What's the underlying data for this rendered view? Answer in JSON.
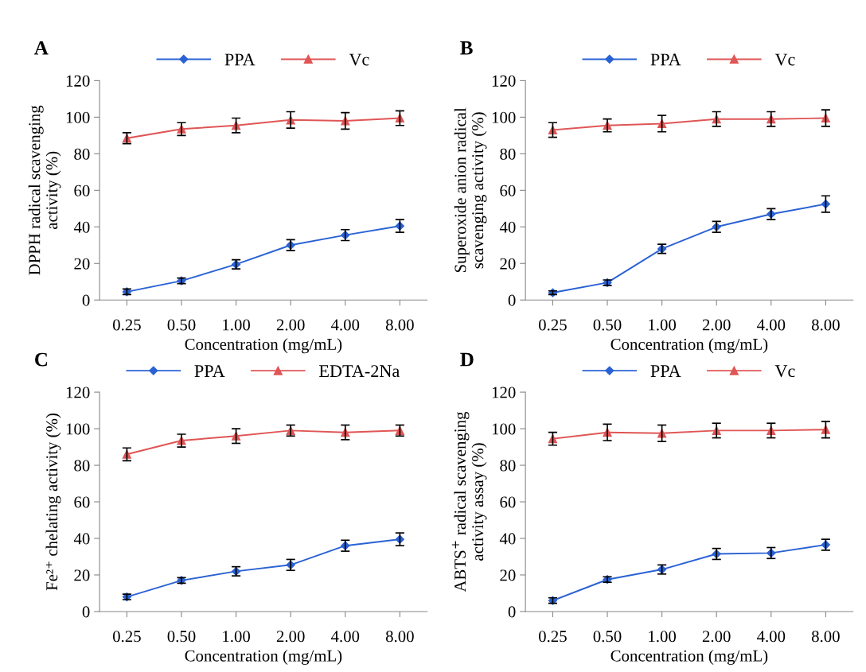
{
  "chart_data": [
    {
      "type": "line",
      "title": "A",
      "xlabel": "Concentration (mg/mL)",
      "ylabel": "DPPH radical scavenging\nactivity (%)",
      "categories": [
        "0.25",
        "0.50",
        "1.00",
        "2.00",
        "4.00",
        "8.00"
      ],
      "ylim": [
        0,
        120
      ],
      "yticks": [
        0,
        20,
        40,
        60,
        80,
        100,
        120
      ],
      "legend": "top",
      "grid": false,
      "series": [
        {
          "name": "PPA",
          "color": "#2a62d4",
          "marker": "diamond",
          "values": [
            4.5,
            10.5,
            19.5,
            30,
            35.5,
            40.5
          ],
          "errors": [
            1.5,
            1.5,
            2.5,
            3,
            3,
            3.5
          ]
        },
        {
          "name": "Vc",
          "color": "#e05555",
          "marker": "triangle",
          "values": [
            88.5,
            93.5,
            95.5,
            98.5,
            98,
            99.5
          ],
          "errors": [
            3,
            3.5,
            4,
            4.5,
            4.5,
            4
          ]
        }
      ]
    },
    {
      "type": "line",
      "title": "B",
      "xlabel": "Concentration (mg/mL)",
      "ylabel": "Superoxide anion radical\nscavenging activity (%)",
      "categories": [
        "0.25",
        "0.50",
        "1.00",
        "2.00",
        "4.00",
        "8.00"
      ],
      "ylim": [
        0,
        120
      ],
      "yticks": [
        0,
        20,
        40,
        60,
        80,
        100,
        120
      ],
      "legend": "top",
      "grid": false,
      "series": [
        {
          "name": "PPA",
          "color": "#2a62d4",
          "marker": "diamond",
          "values": [
            4,
            9.5,
            28,
            40,
            47,
            52.5
          ],
          "errors": [
            1,
            1.5,
            2.5,
            3,
            3,
            4.5
          ]
        },
        {
          "name": "Vc",
          "color": "#e05555",
          "marker": "triangle",
          "values": [
            93,
            95.5,
            96.5,
            99,
            99,
            99.5
          ],
          "errors": [
            4,
            3.5,
            4.5,
            4,
            4,
            4.5
          ]
        }
      ]
    },
    {
      "type": "line",
      "title": "C",
      "xlabel": "Concentration (mg/mL)",
      "ylabel": "Fe²⁺ chelating activity (%)",
      "categories": [
        "0.25",
        "0.50",
        "1.00",
        "2.00",
        "4.00",
        "8.00"
      ],
      "ylim": [
        0,
        120
      ],
      "yticks": [
        0,
        20,
        40,
        60,
        80,
        100,
        120
      ],
      "legend": "top",
      "grid": false,
      "series": [
        {
          "name": "PPA",
          "color": "#2a62d4",
          "marker": "diamond",
          "values": [
            8,
            17,
            22,
            25.5,
            36,
            39.5
          ],
          "errors": [
            1.5,
            1.5,
            2.5,
            3,
            3,
            3.5
          ]
        },
        {
          "name": "EDTA-2Na",
          "color": "#e05555",
          "marker": "triangle",
          "values": [
            86,
            93.5,
            96,
            99,
            98,
            99
          ],
          "errors": [
            3.5,
            3.5,
            4,
            3,
            4,
            3
          ]
        }
      ]
    },
    {
      "type": "line",
      "title": "D",
      "xlabel": "Concentration (mg/mL)",
      "ylabel": "ABTS$^{+}$ radical scavenging\nactivity assay (%)",
      "categories": [
        "0.25",
        "0.50",
        "1.00",
        "2.00",
        "4.00",
        "8.00"
      ],
      "ylim": [
        0,
        120
      ],
      "yticks": [
        0,
        20,
        40,
        60,
        80,
        100,
        120
      ],
      "legend": "top",
      "grid": false,
      "series": [
        {
          "name": "PPA",
          "color": "#2a62d4",
          "marker": "diamond",
          "values": [
            6,
            17.5,
            23,
            31.5,
            32,
            36.5
          ],
          "errors": [
            1.5,
            1.5,
            2.5,
            3,
            3,
            3
          ]
        },
        {
          "name": "Vc",
          "color": "#e05555",
          "marker": "triangle",
          "values": [
            94.5,
            98,
            97.5,
            99,
            99,
            99.5
          ],
          "errors": [
            3.5,
            4.5,
            4.5,
            4,
            4,
            4.5
          ]
        }
      ]
    }
  ]
}
